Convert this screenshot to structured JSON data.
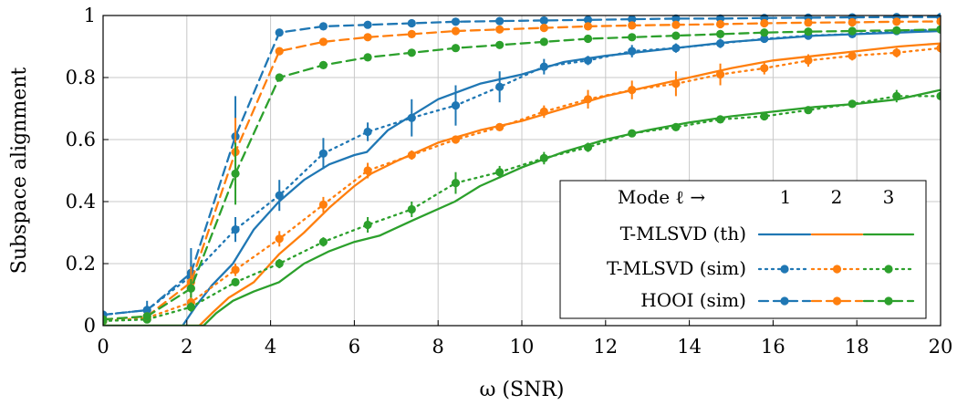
{
  "chart_data": {
    "type": "line",
    "xlabel": "ω (SNR)",
    "ylabel": "Subspace alignment",
    "xlim": [
      0,
      20
    ],
    "ylim": [
      0,
      1
    ],
    "xticks": [
      "0",
      "2",
      "4",
      "6",
      "8",
      "10",
      "12",
      "14",
      "16",
      "18",
      "20"
    ],
    "yticks": [
      "0",
      "0.2",
      "0.4",
      "0.6",
      "0.8",
      "1"
    ],
    "grid": true,
    "legend": {
      "placement": "bottom-right",
      "header": "Mode ℓ →",
      "modes": [
        "1",
        "2",
        "3"
      ],
      "rows": [
        "T-MLSVD (th)",
        "T-MLSVD (sim)",
        "HOOI (sim)"
      ]
    },
    "colors": {
      "mode1": "#1f77b4",
      "mode2": "#ff7f0e",
      "mode3": "#2ca02c"
    },
    "series": [
      {
        "name": "T-MLSVD (th)",
        "mode": 1,
        "style": "solid",
        "x": [
          0,
          1.9,
          2.2,
          2.6,
          3.1,
          3.6,
          4.2,
          4.8,
          5.4,
          6.0,
          6.3,
          6.8,
          7.4,
          8.0,
          9.0,
          10.0,
          11.0,
          12.0,
          13.0,
          14.0,
          15.0,
          16.0,
          17.0,
          18.0,
          19.0,
          20.0
        ],
        "y": [
          0,
          0,
          0.06,
          0.13,
          0.2,
          0.31,
          0.4,
          0.47,
          0.52,
          0.55,
          0.56,
          0.63,
          0.68,
          0.73,
          0.78,
          0.81,
          0.85,
          0.87,
          0.885,
          0.9,
          0.915,
          0.925,
          0.935,
          0.94,
          0.945,
          0.95
        ]
      },
      {
        "name": "T-MLSVD (th)",
        "mode": 2,
        "style": "solid",
        "x": [
          0,
          2.3,
          2.6,
          3.0,
          3.6,
          4.2,
          4.8,
          5.4,
          6.0,
          6.4,
          7.0,
          8.0,
          9.0,
          10.0,
          11.0,
          12.0,
          13.0,
          14.0,
          15.0,
          16.0,
          17.0,
          18.0,
          19.0,
          20.0
        ],
        "y": [
          0,
          0,
          0.04,
          0.09,
          0.14,
          0.23,
          0.3,
          0.38,
          0.45,
          0.49,
          0.53,
          0.59,
          0.63,
          0.66,
          0.7,
          0.74,
          0.77,
          0.8,
          0.83,
          0.855,
          0.87,
          0.885,
          0.9,
          0.91
        ]
      },
      {
        "name": "T-MLSVD (th)",
        "mode": 3,
        "style": "solid",
        "x": [
          0,
          2.4,
          2.7,
          3.1,
          3.6,
          4.2,
          4.8,
          5.4,
          6.0,
          6.6,
          7.4,
          8.4,
          9.0,
          10.0,
          11.0,
          12.0,
          13.0,
          14.0,
          15.0,
          16.0,
          17.0,
          18.0,
          19.0,
          20.0
        ],
        "y": [
          0,
          0,
          0.04,
          0.08,
          0.11,
          0.14,
          0.2,
          0.24,
          0.27,
          0.29,
          0.34,
          0.4,
          0.45,
          0.51,
          0.56,
          0.6,
          0.63,
          0.655,
          0.675,
          0.69,
          0.705,
          0.715,
          0.73,
          0.76
        ]
      },
      {
        "name": "T-MLSVD (sim)",
        "mode": 1,
        "style": "dotted",
        "x": [
          0,
          1.05,
          2.1,
          3.16,
          4.21,
          5.26,
          6.32,
          7.37,
          8.42,
          9.47,
          10.53,
          11.58,
          12.63,
          13.68,
          14.74,
          15.79,
          16.84,
          17.89,
          18.95,
          20
        ],
        "y": [
          0.035,
          0.05,
          0.16,
          0.31,
          0.42,
          0.555,
          0.625,
          0.67,
          0.71,
          0.77,
          0.835,
          0.855,
          0.885,
          0.895,
          0.91,
          0.925,
          0.935,
          0.94,
          0.95,
          0.955
        ],
        "err": [
          0.01,
          0.03,
          0.05,
          0.04,
          0.05,
          0.05,
          0.03,
          0.06,
          0.065,
          0.05,
          0.025,
          0.015,
          0.02,
          0.015,
          0.015,
          0.01,
          0.01,
          0.01,
          0.01,
          0.008
        ]
      },
      {
        "name": "T-MLSVD (sim)",
        "mode": 2,
        "style": "dotted",
        "x": [
          0,
          1.05,
          2.1,
          3.16,
          4.21,
          5.26,
          6.32,
          7.37,
          8.42,
          9.47,
          10.53,
          11.58,
          12.63,
          13.68,
          14.74,
          15.79,
          16.84,
          17.89,
          18.95,
          20
        ],
        "y": [
          0.015,
          0.025,
          0.075,
          0.18,
          0.28,
          0.39,
          0.5,
          0.55,
          0.6,
          0.64,
          0.69,
          0.73,
          0.76,
          0.78,
          0.81,
          0.83,
          0.855,
          0.87,
          0.88,
          0.895
        ],
        "err": [
          0.008,
          0.015,
          0.025,
          0.02,
          0.025,
          0.025,
          0.025,
          0.015,
          0.01,
          0.01,
          0.02,
          0.03,
          0.03,
          0.04,
          0.035,
          0.02,
          0.02,
          0.015,
          0.015,
          0.015
        ]
      },
      {
        "name": "T-MLSVD (sim)",
        "mode": 3,
        "style": "dotted",
        "x": [
          0,
          1.05,
          2.1,
          3.16,
          4.21,
          5.26,
          6.32,
          7.37,
          8.42,
          9.47,
          10.53,
          11.58,
          12.63,
          13.68,
          14.74,
          15.79,
          16.84,
          17.89,
          18.95,
          20
        ],
        "y": [
          0.015,
          0.02,
          0.06,
          0.14,
          0.2,
          0.27,
          0.325,
          0.375,
          0.46,
          0.495,
          0.54,
          0.575,
          0.62,
          0.64,
          0.665,
          0.675,
          0.695,
          0.715,
          0.74,
          0.74
        ],
        "err": [
          0.005,
          0.01,
          0.015,
          0.01,
          0.015,
          0.015,
          0.025,
          0.025,
          0.035,
          0.02,
          0.02,
          0.015,
          0.01,
          0.01,
          0.01,
          0.008,
          0.008,
          0.008,
          0.02,
          0.008
        ]
      },
      {
        "name": "HOOI (sim)",
        "mode": 1,
        "style": "dashed",
        "x": [
          0,
          1.05,
          2.1,
          3.16,
          4.21,
          5.26,
          6.32,
          7.37,
          8.42,
          9.47,
          10.53,
          11.58,
          12.63,
          13.68,
          14.74,
          15.79,
          16.84,
          17.89,
          18.95,
          20
        ],
        "y": [
          0.035,
          0.05,
          0.17,
          0.61,
          0.945,
          0.965,
          0.97,
          0.975,
          0.98,
          0.982,
          0.984,
          0.986,
          0.988,
          0.99,
          0.99,
          0.992,
          0.993,
          0.994,
          0.995,
          0.995
        ],
        "err": [
          0.01,
          0.015,
          0.08,
          0.13,
          0.01,
          0.008,
          0.008,
          0.005,
          0.005,
          0.004,
          0.004,
          0.004,
          0.003,
          0.003,
          0.003,
          0.003,
          0.003,
          0.002,
          0.002,
          0.002
        ]
      },
      {
        "name": "HOOI (sim)",
        "mode": 2,
        "style": "dashed",
        "x": [
          0,
          1.05,
          2.1,
          3.16,
          4.21,
          5.26,
          6.32,
          7.37,
          8.42,
          9.47,
          10.53,
          11.58,
          12.63,
          13.68,
          14.74,
          15.79,
          16.84,
          17.89,
          18.95,
          20
        ],
        "y": [
          0.02,
          0.03,
          0.14,
          0.56,
          0.885,
          0.915,
          0.93,
          0.94,
          0.95,
          0.955,
          0.96,
          0.965,
          0.968,
          0.97,
          0.972,
          0.975,
          0.977,
          0.978,
          0.98,
          0.981
        ],
        "err": [
          0.008,
          0.012,
          0.05,
          0.11,
          0.01,
          0.008,
          0.008,
          0.006,
          0.005,
          0.005,
          0.004,
          0.004,
          0.004,
          0.003,
          0.003,
          0.003,
          0.003,
          0.003,
          0.003,
          0.003
        ]
      },
      {
        "name": "HOOI (sim)",
        "mode": 3,
        "style": "dashed",
        "x": [
          0,
          1.05,
          2.1,
          3.16,
          4.21,
          5.26,
          6.32,
          7.37,
          8.42,
          9.47,
          10.53,
          11.58,
          12.63,
          13.68,
          14.74,
          15.79,
          16.84,
          17.89,
          18.95,
          20
        ],
        "y": [
          0.02,
          0.03,
          0.12,
          0.49,
          0.8,
          0.84,
          0.865,
          0.88,
          0.895,
          0.905,
          0.915,
          0.925,
          0.93,
          0.935,
          0.94,
          0.945,
          0.948,
          0.95,
          0.952,
          0.955
        ],
        "err": [
          0.006,
          0.01,
          0.03,
          0.1,
          0.012,
          0.008,
          0.008,
          0.006,
          0.005,
          0.005,
          0.004,
          0.004,
          0.004,
          0.004,
          0.003,
          0.003,
          0.003,
          0.003,
          0.003,
          0.003
        ]
      }
    ]
  }
}
